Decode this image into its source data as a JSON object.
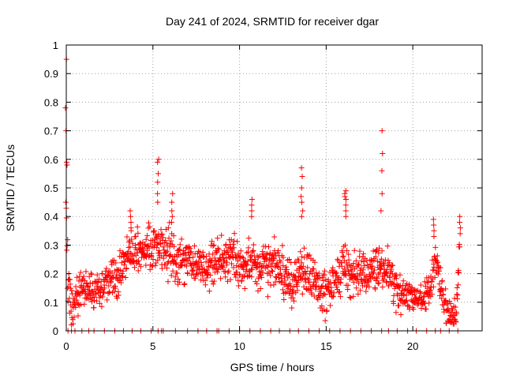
{
  "chart_data": {
    "type": "scatter",
    "title": "Day 241 of 2024, SRMTID for receiver dgar",
    "xlabel": "GPS time / hours",
    "ylabel": "SRMTID / TECUs",
    "xlim": [
      0,
      24
    ],
    "ylim": [
      0,
      1
    ],
    "xticks": [
      0,
      5,
      10,
      15,
      20
    ],
    "yticks": [
      0,
      0.1,
      0.2,
      0.3,
      0.4,
      0.5,
      0.6,
      0.7,
      0.8,
      0.9,
      1
    ],
    "xtick_labels": [
      "0",
      "5",
      "10",
      "15",
      "20"
    ],
    "ytick_labels": [
      "0",
      "0.1",
      "0.2",
      "0.3",
      "0.4",
      "0.5",
      "0.6",
      "0.7",
      "0.8",
      "0.9",
      "1"
    ],
    "grid": true,
    "marker": "+",
    "series": [
      {
        "name": "SRMTID",
        "color": "#ff0000",
        "trend": [
          [
            0.0,
            0.45
          ],
          [
            0.1,
            0.17
          ],
          [
            0.3,
            0.08
          ],
          [
            0.6,
            0.1
          ],
          [
            1.0,
            0.15
          ],
          [
            1.5,
            0.14
          ],
          [
            2.0,
            0.15
          ],
          [
            2.5,
            0.17
          ],
          [
            3.0,
            0.2
          ],
          [
            3.5,
            0.26
          ],
          [
            4.0,
            0.28
          ],
          [
            4.5,
            0.28
          ],
          [
            5.0,
            0.3
          ],
          [
            5.5,
            0.28
          ],
          [
            6.0,
            0.27
          ],
          [
            6.5,
            0.24
          ],
          [
            7.0,
            0.25
          ],
          [
            7.5,
            0.22
          ],
          [
            8.0,
            0.22
          ],
          [
            8.5,
            0.24
          ],
          [
            9.0,
            0.25
          ],
          [
            9.5,
            0.26
          ],
          [
            10.0,
            0.24
          ],
          [
            10.5,
            0.24
          ],
          [
            11.0,
            0.23
          ],
          [
            11.5,
            0.22
          ],
          [
            12.0,
            0.24
          ],
          [
            12.5,
            0.2
          ],
          [
            13.0,
            0.16
          ],
          [
            13.5,
            0.22
          ],
          [
            14.0,
            0.2
          ],
          [
            14.5,
            0.16
          ],
          [
            15.0,
            0.13
          ],
          [
            15.5,
            0.18
          ],
          [
            16.0,
            0.22
          ],
          [
            16.5,
            0.2
          ],
          [
            17.0,
            0.19
          ],
          [
            17.5,
            0.21
          ],
          [
            18.0,
            0.22
          ],
          [
            18.5,
            0.2
          ],
          [
            19.0,
            0.14
          ],
          [
            19.5,
            0.13
          ],
          [
            20.0,
            0.12
          ],
          [
            20.5,
            0.11
          ],
          [
            21.0,
            0.14
          ],
          [
            21.3,
            0.25
          ],
          [
            21.6,
            0.15
          ],
          [
            22.0,
            0.06
          ],
          [
            22.5,
            0.04
          ],
          [
            22.7,
            0.28
          ]
        ],
        "spread": [
          [
            0.0,
            0.1
          ],
          [
            1.0,
            0.05
          ],
          [
            3.0,
            0.07
          ],
          [
            5.0,
            0.08
          ],
          [
            8.0,
            0.07
          ],
          [
            12.0,
            0.07
          ],
          [
            15.0,
            0.07
          ],
          [
            18.0,
            0.08
          ],
          [
            20.0,
            0.05
          ],
          [
            22.7,
            0.06
          ]
        ],
        "peaks": [
          {
            "x": 0.0,
            "ys": [
              0.95,
              0.78,
              0.7,
              0.59,
              0.58,
              0.45
            ]
          },
          {
            "x": 3.7,
            "ys": [
              0.42,
              0.4,
              0.38,
              0.36,
              0.35
            ]
          },
          {
            "x": 5.3,
            "ys": [
              0.6,
              0.59,
              0.55,
              0.52,
              0.48,
              0.45
            ]
          },
          {
            "x": 6.1,
            "ys": [
              0.48,
              0.45,
              0.42,
              0.4,
              0.38
            ]
          },
          {
            "x": 10.7,
            "ys": [
              0.46,
              0.44,
              0.42,
              0.4
            ]
          },
          {
            "x": 13.6,
            "ys": [
              0.57,
              0.54,
              0.5,
              0.47,
              0.45,
              0.42,
              0.4
            ]
          },
          {
            "x": 16.1,
            "ys": [
              0.49,
              0.48,
              0.47,
              0.46,
              0.44,
              0.42,
              0.4
            ]
          },
          {
            "x": 18.2,
            "ys": [
              0.7,
              0.62,
              0.56,
              0.48,
              0.42
            ]
          },
          {
            "x": 21.2,
            "ys": [
              0.39,
              0.37,
              0.35,
              0.33
            ]
          },
          {
            "x": 22.7,
            "ys": [
              0.4,
              0.38,
              0.36,
              0.34
            ]
          }
        ],
        "zero_points_x": [
          0.1,
          0.3,
          0.5,
          0.9,
          1.3,
          1.6,
          2.2,
          2.8,
          3.3,
          3.8,
          4.3,
          4.9,
          5.3,
          5.5,
          5.6,
          6.3,
          7.0,
          7.6,
          8.1,
          8.7,
          8.8,
          9.4,
          10.0,
          10.6,
          11.2,
          11.8,
          12.3,
          12.9,
          13.4,
          14.0,
          14.6,
          15.2,
          15.8,
          16.4,
          17.0,
          17.6,
          18.2,
          18.6,
          19.1,
          19.7,
          20.2,
          20.8,
          21.3,
          21.6,
          22.1,
          22.6
        ]
      }
    ]
  }
}
